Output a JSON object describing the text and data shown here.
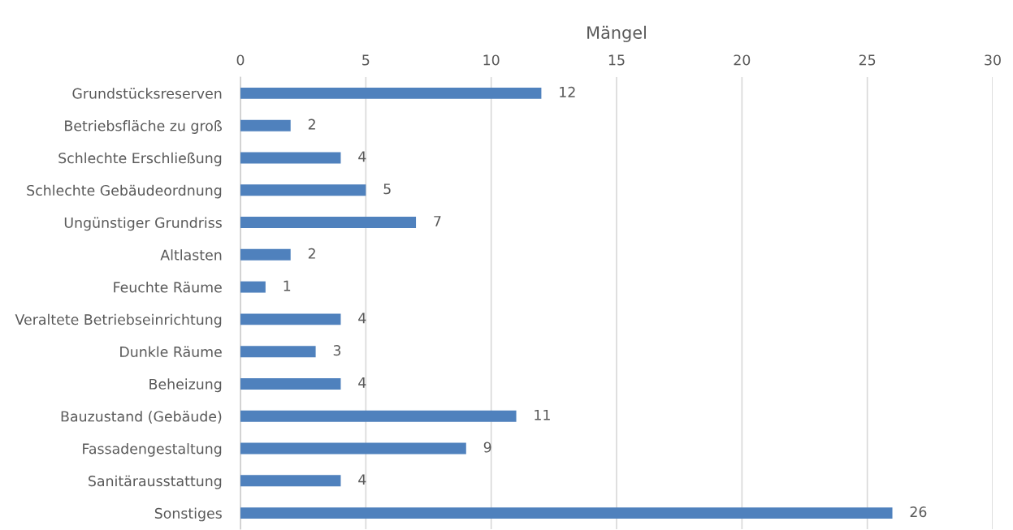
{
  "chart_data": {
    "type": "bar",
    "orientation": "horizontal",
    "xlabel": "Mängel",
    "categories": [
      "Grundstücksreserven",
      "Betriebsfläche zu groß",
      "Schlechte Erschließung",
      "Schlechte Gebäudeordnung",
      "Ungünstiger Grundriss",
      "Altlasten",
      "Feuchte Räume",
      "Veraltete Betriebseinrichtung",
      "Dunkle Räume",
      "Beheizung",
      "Bauzustand (Gebäude)",
      "Fassadengestaltung",
      "Sanitärausstattung",
      "Sonstiges"
    ],
    "values": [
      12,
      2,
      4,
      5,
      7,
      2,
      1,
      4,
      3,
      4,
      11,
      9,
      4,
      26
    ],
    "color": "#4f81bd",
    "xlim": [
      0,
      30
    ],
    "xticks": [
      0,
      5,
      10,
      15,
      20,
      25,
      30
    ],
    "grid": "x",
    "data_labels": true
  }
}
